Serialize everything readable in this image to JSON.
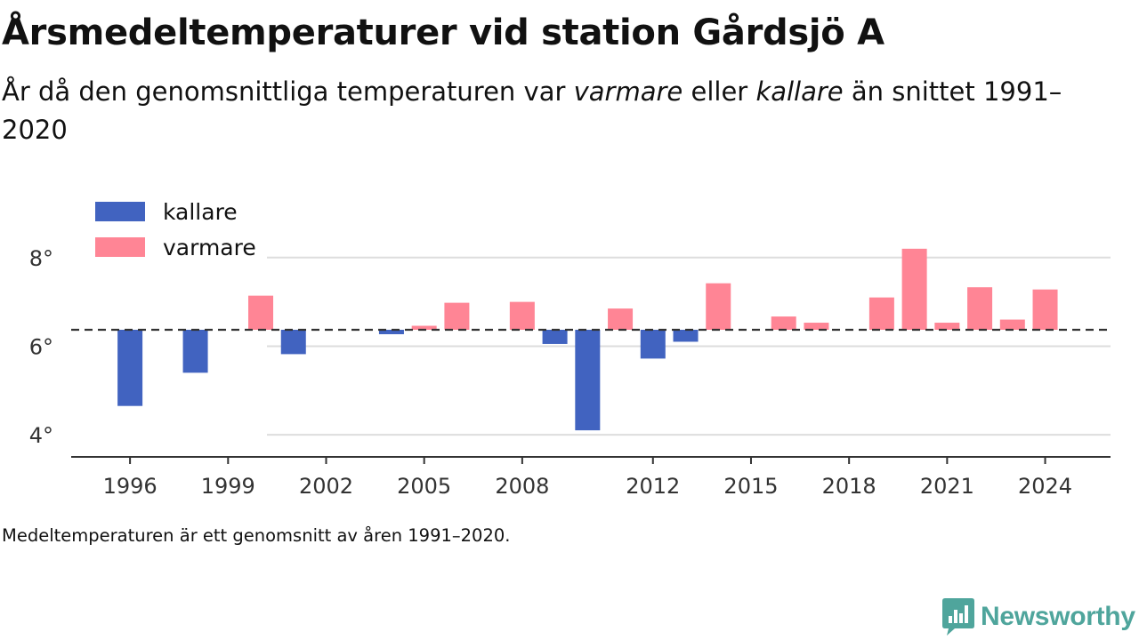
{
  "title": "Årsmedeltemperaturer vid station Gårdsjö A",
  "subtitle": {
    "part1": "År då den genomsnittliga temperaturen var ",
    "warm_word": "varmare",
    "part2": " eller ",
    "cold_word": "kallare",
    "part3": " än snittet 1991–2020"
  },
  "footnote": "Medeltemperaturen är ett genomsnitt av åren 1991–2020.",
  "brand": {
    "name": "Newsworthy",
    "icon": "newsworthy-logo-icon"
  },
  "colors": {
    "cold": "#4163c0",
    "warm": "#ff8595",
    "baseline": "#333333",
    "grid": "#dddddd",
    "axis": "#333333",
    "tick_text": "#333333",
    "brand": "#4fa59c"
  },
  "chart_data": {
    "type": "bar",
    "baseline_label": "",
    "baseline": 6.37,
    "y_unit": "°",
    "ylim": [
      3.5,
      9.2
    ],
    "y_ticks": [
      4,
      6,
      8
    ],
    "x_range": [
      1994.2,
      2026.0
    ],
    "x_ticks": [
      1996,
      1999,
      2002,
      2005,
      2008,
      2012,
      2015,
      2018,
      2021,
      2024
    ],
    "legend": [
      {
        "key": "cold",
        "label": "kallare"
      },
      {
        "key": "warm",
        "label": "varmare"
      }
    ],
    "legend_position": "top-left",
    "grid": "horizontal",
    "x": [
      1996,
      1998,
      2000,
      2001,
      2004,
      2005,
      2006,
      2008,
      2009,
      2010,
      2011,
      2012,
      2013,
      2014,
      2016,
      2017,
      2019,
      2020,
      2021,
      2022,
      2023,
      2024
    ],
    "values": [
      4.65,
      5.4,
      7.14,
      5.82,
      6.27,
      6.46,
      6.98,
      7.0,
      6.05,
      4.1,
      6.85,
      5.72,
      6.1,
      7.42,
      6.67,
      6.53,
      7.1,
      8.2,
      6.53,
      7.33,
      6.6,
      7.28
    ]
  }
}
